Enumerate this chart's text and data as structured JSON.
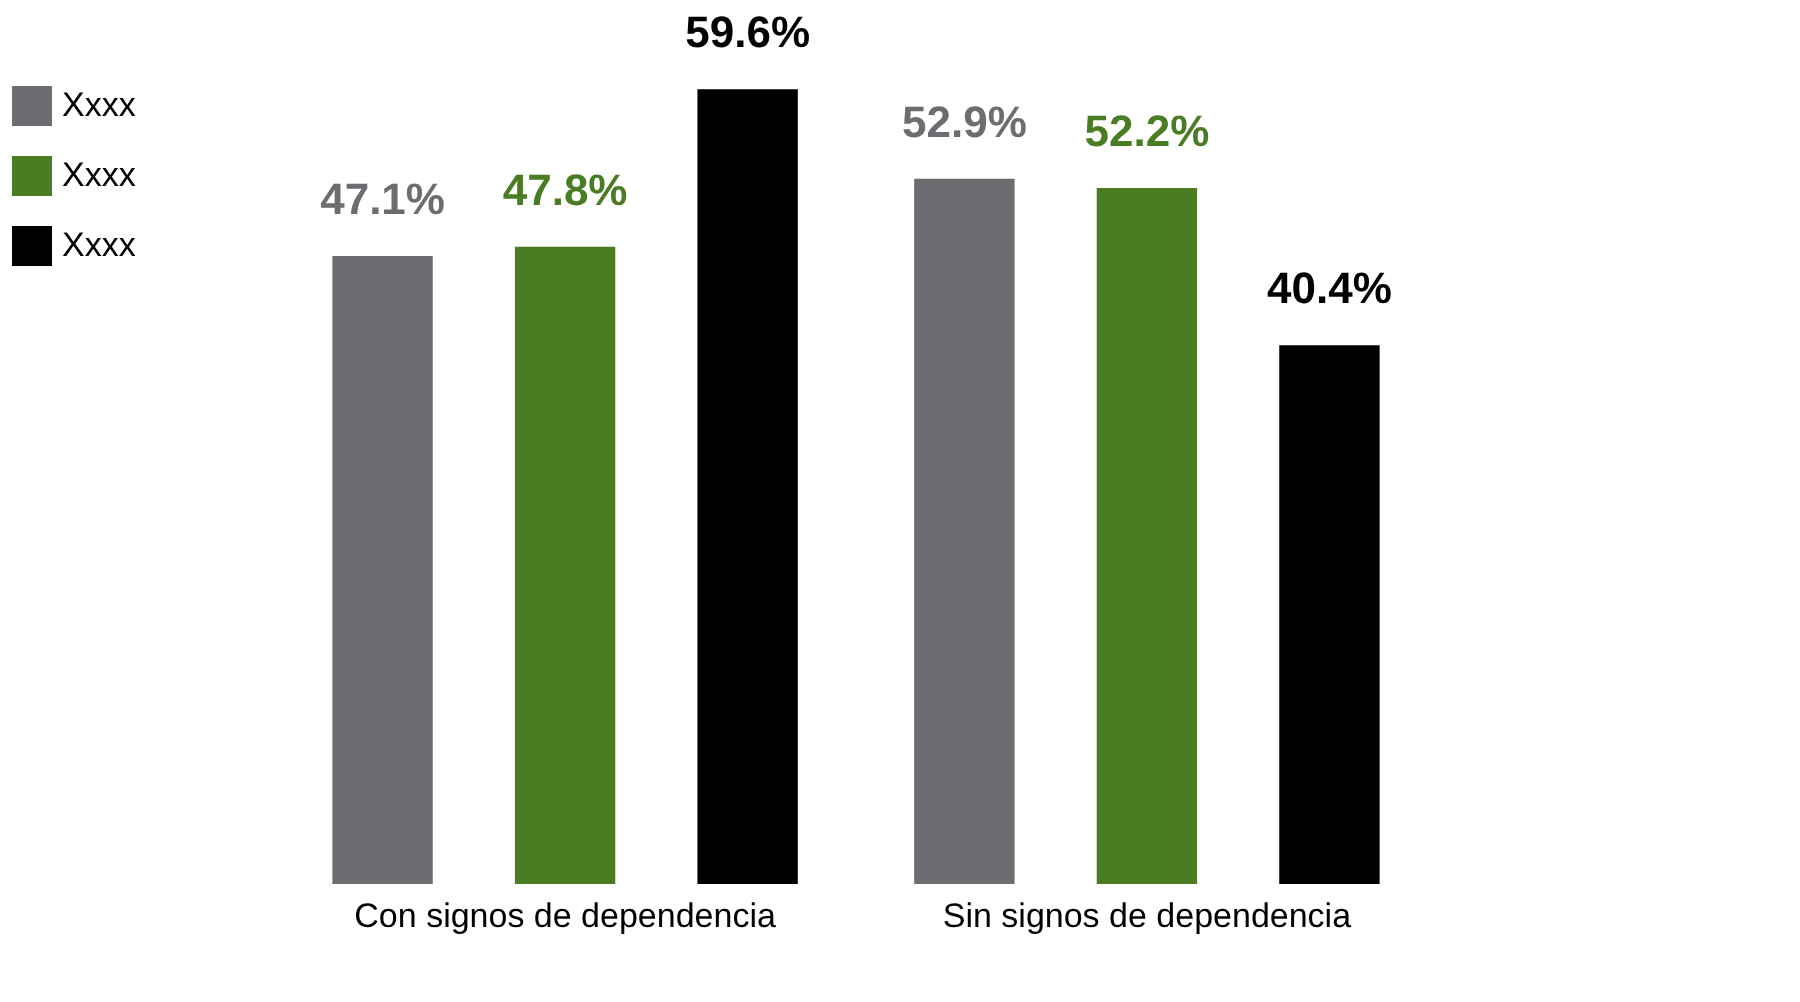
{
  "chart_data": {
    "type": "bar",
    "categories": [
      "Con signos de dependencia",
      "Sin signos de dependencia"
    ],
    "series": [
      {
        "name": "Xxxx",
        "color": "#6d6c71",
        "values": [
          47.1,
          52.9
        ],
        "value_labels": [
          "47.1%",
          "52.9%"
        ]
      },
      {
        "name": "Xxxx",
        "color": "#4a7c23",
        "values": [
          47.8,
          52.2
        ],
        "value_labels": [
          "47.8%",
          "52.2%"
        ]
      },
      {
        "name": "Xxxx",
        "color": "#000000",
        "values": [
          59.6,
          40.4
        ],
        "value_labels": [
          "59.6%",
          "40.4%"
        ]
      }
    ],
    "legend": "left",
    "grid": false
  }
}
